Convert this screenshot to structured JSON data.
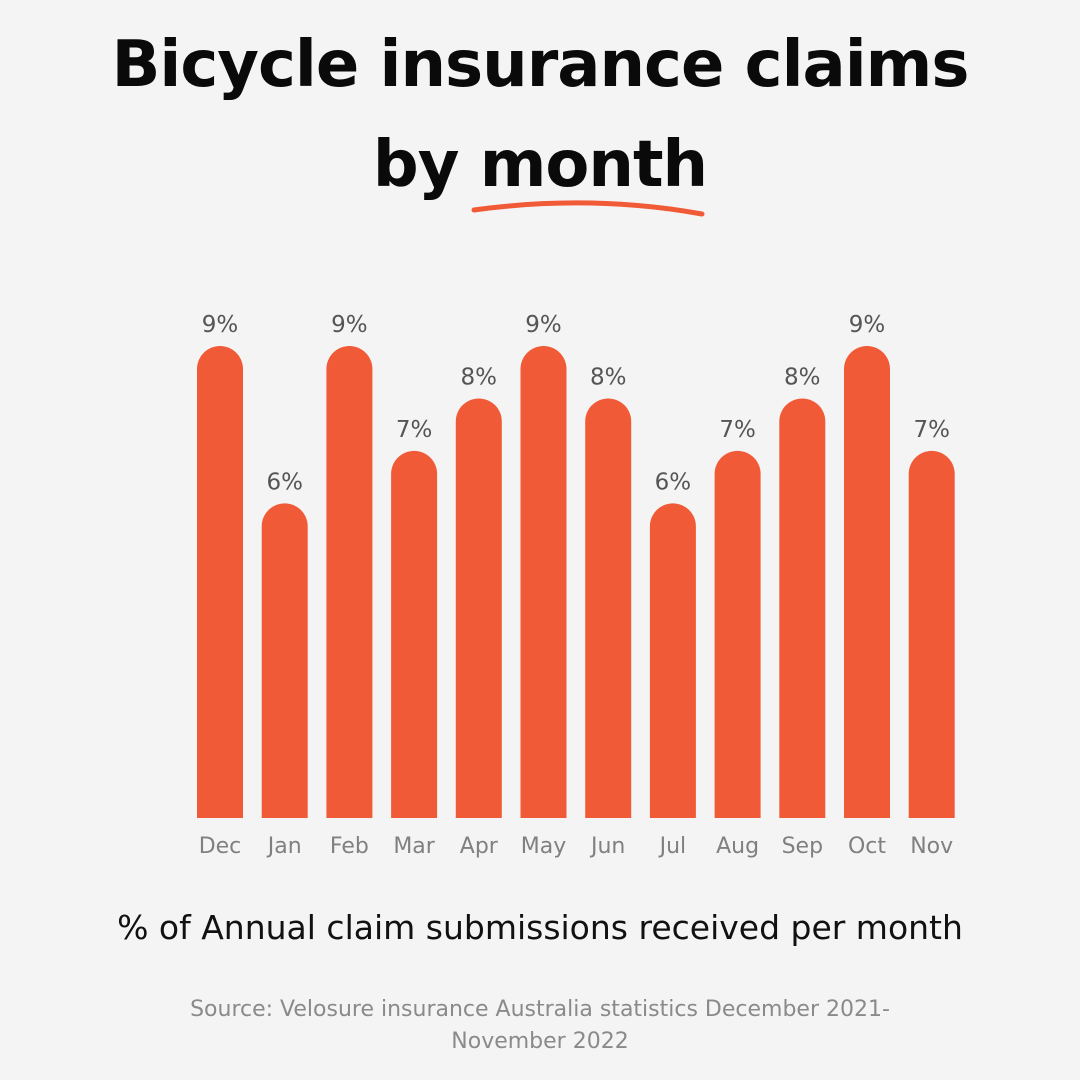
{
  "title": {
    "line1": "Bicycle insurance claims",
    "line2_prefix": "by ",
    "line2_highlight": "month"
  },
  "colors": {
    "bar": "#F15A36",
    "background": "#F4F4F4",
    "underline": "#F15A36",
    "value_label": "#555555",
    "month_label": "#808080"
  },
  "chart_data": {
    "type": "bar",
    "title": "Bicycle insurance claims by month",
    "xlabel": "% of Annual claim submissions received per month",
    "ylabel": "",
    "unit": "%",
    "ylim": [
      0,
      9
    ],
    "grid": false,
    "categories": [
      "Dec",
      "Jan",
      "Feb",
      "Mar",
      "Apr",
      "May",
      "Jun",
      "Jul",
      "Aug",
      "Sep",
      "Oct",
      "Nov"
    ],
    "values": [
      9,
      6,
      9,
      7,
      8,
      9,
      8,
      6,
      7,
      8,
      9,
      7
    ],
    "data_labels": [
      "9%",
      "6%",
      "9%",
      "7%",
      "8%",
      "9%",
      "8%",
      "6%",
      "7%",
      "8%",
      "9%",
      "7%"
    ]
  },
  "subtitle": "% of Annual claim submissions received per month",
  "source": "Source: Velosure insurance Australia statistics December 2021-November 2022"
}
